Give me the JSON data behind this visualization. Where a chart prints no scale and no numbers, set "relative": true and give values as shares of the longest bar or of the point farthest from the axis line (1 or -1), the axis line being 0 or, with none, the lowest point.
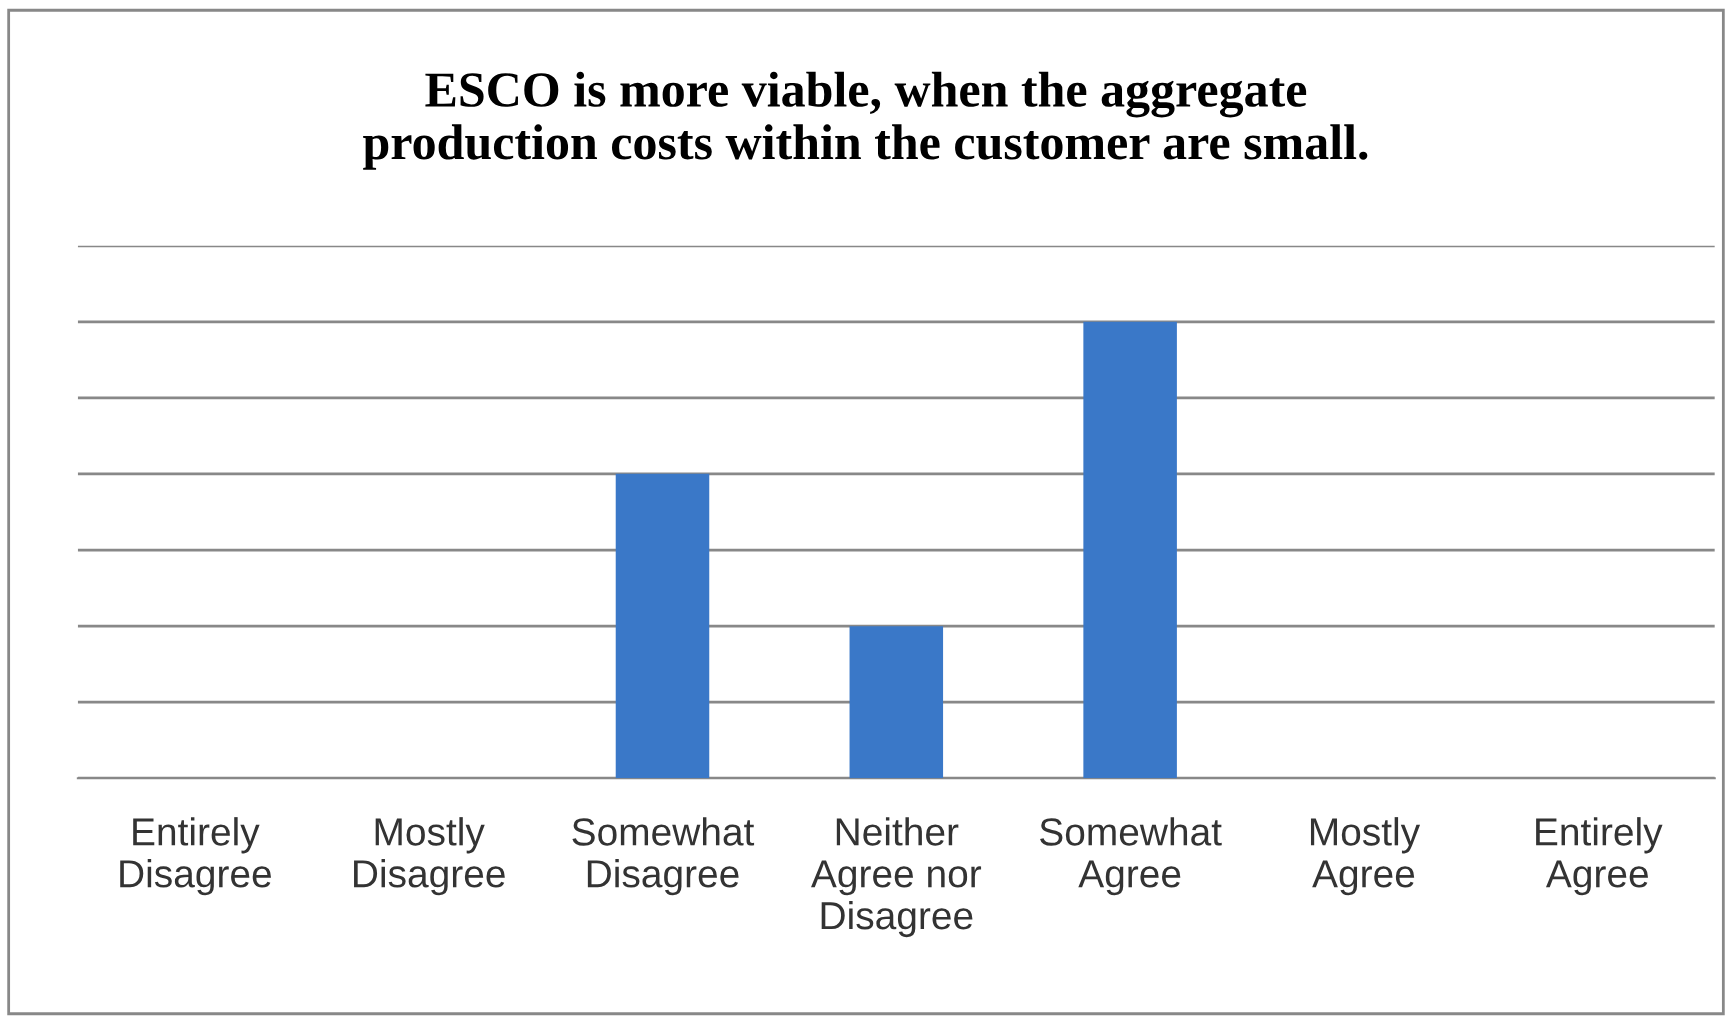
{
  "chart_data": {
    "type": "bar",
    "title": "ESCO is more viable, when the aggregate\nproduction costs within the customer are small.",
    "categories": [
      "Entirely\nDisagree",
      "Mostly\nDisagree",
      "Somewhat\nDisagree",
      "Neither\nAgree nor\nDisagree",
      "Somewhat\nAgree",
      "Mostly\nAgree",
      "Entirely\nAgree"
    ],
    "values": [
      0,
      0,
      0.667,
      0.333,
      1,
      0,
      0
    ],
    "color": "#3a78c8",
    "relative": true,
    "grid": "y",
    "legend": false
  }
}
